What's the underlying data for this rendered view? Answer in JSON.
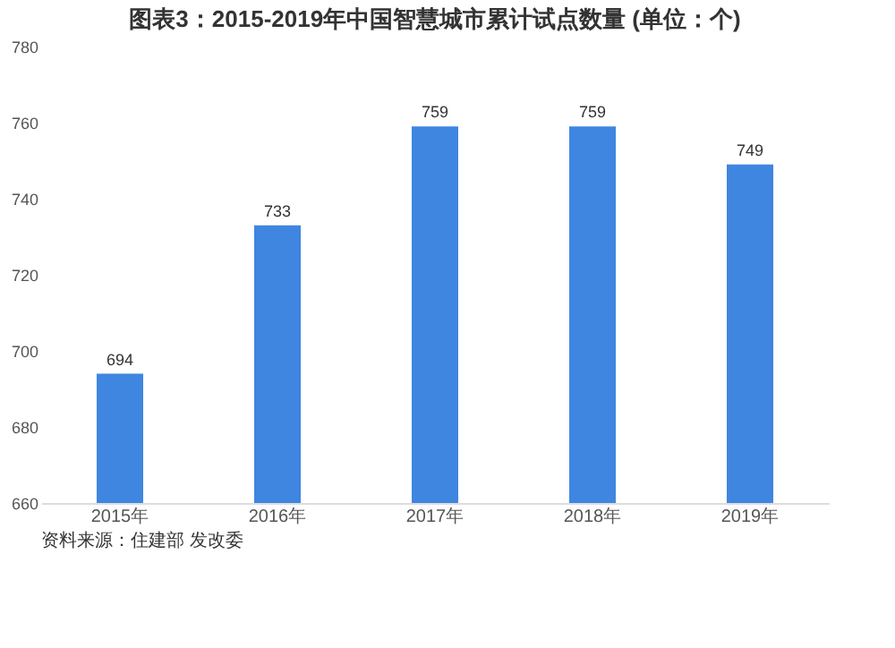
{
  "chart_data": {
    "type": "bar",
    "title": "图表3：2015-2019年中国智慧城市累计试点数量 (单位：个)",
    "categories": [
      "2015年",
      "2016年",
      "2017年",
      "2018年",
      "2019年"
    ],
    "values": [
      694,
      733,
      759,
      759,
      749
    ],
    "color": "#3f86e0",
    "ylim": [
      660,
      780
    ],
    "yticks": [
      660,
      680,
      700,
      720,
      740,
      760,
      780
    ],
    "data_labels": true,
    "grid": false,
    "annotations": [
      "资料来源：住建部 发改委"
    ]
  }
}
